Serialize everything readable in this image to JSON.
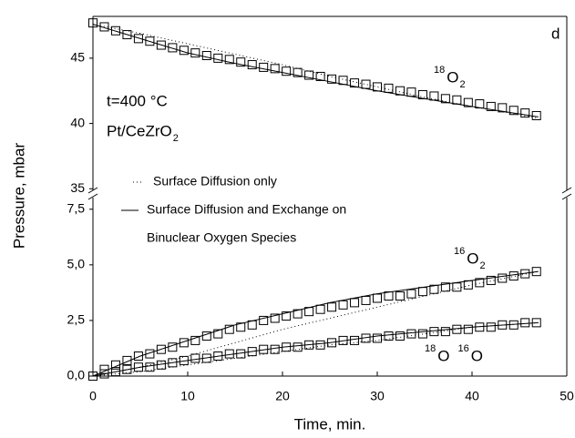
{
  "chart_data": [
    {
      "type": "line",
      "ylabel": "Pressure, mbar",
      "xlim": [
        0,
        50
      ],
      "ylim": [
        34.6,
        48.2
      ],
      "yticks": [
        35,
        40,
        45
      ],
      "annotations": [
        [
          {
            "text": "d"
          }
        ],
        [
          {
            "text": "t=400 °C"
          }
        ],
        [
          {
            "text": "Pt/CeZrO",
            "sub": "2"
          }
        ]
      ],
      "series": [
        {
          "marker": "square",
          "color": "#000000",
          "label": [
            {
              "sup": "18",
              "text": "O",
              "sub": "2"
            }
          ],
          "x": [
            0,
            1.2,
            2.4,
            3.6,
            4.8,
            6,
            7.2,
            8.4,
            9.6,
            10.8,
            12,
            13.2,
            14.4,
            15.6,
            16.8,
            18,
            19.2,
            20.4,
            21.6,
            22.8,
            24,
            25.2,
            26.4,
            27.6,
            28.8,
            30,
            31.2,
            32.4,
            33.6,
            34.8,
            36,
            37.2,
            38.4,
            39.6,
            40.8,
            42,
            43.2,
            44.4,
            45.6,
            46.8
          ],
          "values": [
            47.7,
            47.4,
            47.1,
            46.8,
            46.5,
            46.3,
            46.0,
            45.8,
            45.6,
            45.4,
            45.2,
            45.0,
            44.9,
            44.7,
            44.5,
            44.3,
            44.2,
            44.0,
            43.9,
            43.7,
            43.6,
            43.4,
            43.3,
            43.1,
            43.0,
            42.8,
            42.7,
            42.5,
            42.4,
            42.2,
            42.1,
            41.9,
            41.8,
            41.6,
            41.5,
            41.3,
            41.2,
            41.0,
            40.8,
            40.6
          ]
        },
        {
          "style": "dotted",
          "color": "#000000",
          "x": [
            0,
            5,
            10,
            15,
            20,
            25,
            30,
            35,
            40,
            47
          ],
          "values": [
            47.6,
            46.9,
            46.1,
            45.3,
            44.5,
            43.6,
            42.8,
            42.0,
            41.3,
            40.4
          ]
        },
        {
          "style": "solid",
          "color": "#000000",
          "x": [
            0,
            5,
            10,
            15,
            20,
            25,
            30,
            35,
            40,
            47
          ],
          "values": [
            47.6,
            46.5,
            45.4,
            44.6,
            43.9,
            43.2,
            42.5,
            41.9,
            41.3,
            40.5
          ]
        }
      ]
    },
    {
      "type": "line",
      "xlabel": "Time, min.",
      "xlim": [
        0,
        50
      ],
      "xticks": [
        0,
        10,
        20,
        30,
        40,
        50
      ],
      "ylim": [
        0,
        7.9
      ],
      "yticks": [
        {
          "value": 0,
          "label": "0,0"
        },
        {
          "value": 2.5,
          "label": "2,5"
        },
        {
          "value": 5,
          "label": "5,0"
        },
        {
          "value": 7.5,
          "label": "7,5"
        }
      ],
      "series": [
        {
          "marker": "square",
          "color": "#000000",
          "label": [
            {
              "sup": "16",
              "text": "O",
              "sub": "2"
            }
          ],
          "x": [
            0,
            1.2,
            2.4,
            3.6,
            4.8,
            6,
            7.2,
            8.4,
            9.6,
            10.8,
            12,
            13.2,
            14.4,
            15.6,
            16.8,
            18,
            19.2,
            20.4,
            21.6,
            22.8,
            24,
            25.2,
            26.4,
            27.6,
            28.8,
            30,
            31.2,
            32.4,
            33.6,
            34.8,
            36,
            37.2,
            38.4,
            39.6,
            40.8,
            42,
            43.2,
            44.4,
            45.6,
            46.8
          ],
          "values": [
            0.0,
            0.3,
            0.5,
            0.7,
            0.9,
            1.0,
            1.2,
            1.3,
            1.5,
            1.6,
            1.8,
            1.9,
            2.1,
            2.2,
            2.3,
            2.5,
            2.6,
            2.7,
            2.8,
            2.9,
            3.0,
            3.1,
            3.2,
            3.3,
            3.4,
            3.5,
            3.6,
            3.6,
            3.7,
            3.8,
            3.9,
            4.0,
            4.0,
            4.1,
            4.2,
            4.3,
            4.4,
            4.5,
            4.6,
            4.7
          ]
        },
        {
          "marker": "square",
          "color": "#000000",
          "label": [
            {
              "sup": "18",
              "text": "O"
            },
            {
              "sup": "16",
              "text": "O"
            }
          ],
          "x": [
            0,
            1.2,
            2.4,
            3.6,
            4.8,
            6,
            7.2,
            8.4,
            9.6,
            10.8,
            12,
            13.2,
            14.4,
            15.6,
            16.8,
            18,
            19.2,
            20.4,
            21.6,
            22.8,
            24,
            25.2,
            26.4,
            27.6,
            28.8,
            30,
            31.2,
            32.4,
            33.6,
            34.8,
            36,
            37.2,
            38.4,
            39.6,
            40.8,
            42,
            43.2,
            44.4,
            45.6,
            46.8
          ],
          "values": [
            0.0,
            0.1,
            0.2,
            0.3,
            0.4,
            0.4,
            0.5,
            0.6,
            0.7,
            0.8,
            0.8,
            0.9,
            1.0,
            1.0,
            1.1,
            1.2,
            1.2,
            1.3,
            1.3,
            1.4,
            1.4,
            1.5,
            1.6,
            1.6,
            1.7,
            1.7,
            1.8,
            1.8,
            1.9,
            1.9,
            2.0,
            2.0,
            2.1,
            2.1,
            2.2,
            2.2,
            2.3,
            2.3,
            2.4,
            2.4
          ]
        },
        {
          "style": "dotted",
          "color": "#000000",
          "name": [
            "Surface Diffusion only"
          ],
          "x": [
            0,
            5,
            10,
            15,
            20,
            25,
            30,
            35,
            40,
            47
          ],
          "values": [
            0,
            0.4,
            0.9,
            1.5,
            2.1,
            2.6,
            3.1,
            3.6,
            4.1,
            4.7
          ]
        },
        {
          "style": "solid",
          "color": "#000000",
          "name": [
            "Surface Diffusion and Exchange on",
            "Binuclear Oxygen Species"
          ],
          "x": [
            0,
            5,
            10,
            15,
            20,
            25,
            30,
            35,
            40,
            47
          ],
          "values": [
            0,
            0.9,
            1.6,
            2.3,
            2.8,
            3.3,
            3.7,
            4.0,
            4.3,
            4.7
          ]
        },
        {
          "style": "dotted",
          "color": "#000000",
          "x": [
            0,
            5,
            10,
            15,
            20,
            25,
            30,
            35,
            40,
            47
          ],
          "values": [
            0,
            0.2,
            0.5,
            0.8,
            1.1,
            1.4,
            1.6,
            1.9,
            2.2,
            2.4
          ]
        },
        {
          "style": "solid",
          "color": "#000000",
          "x": [
            0,
            5,
            10,
            15,
            20,
            25,
            30,
            35,
            40,
            47
          ],
          "values": [
            0,
            0.4,
            0.7,
            1.0,
            1.3,
            1.5,
            1.8,
            2.0,
            2.2,
            2.4
          ]
        }
      ]
    }
  ]
}
